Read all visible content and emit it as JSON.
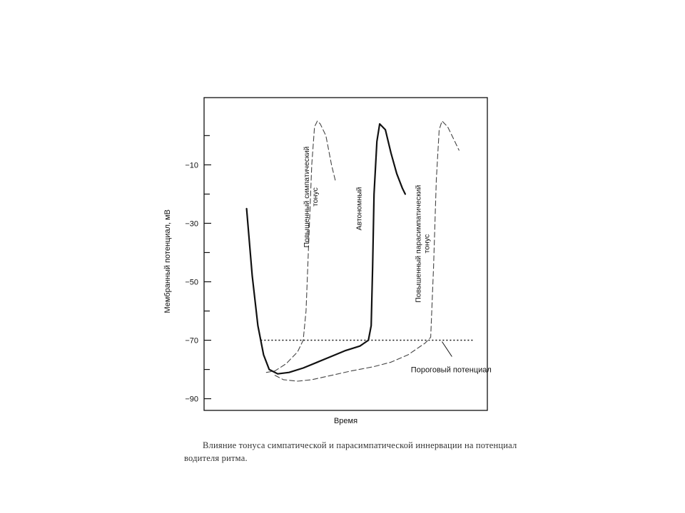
{
  "chart_data": {
    "type": "line",
    "title": "",
    "xlabel": "Время",
    "ylabel": "Мембранный потенциал, мВ",
    "ylim": [
      -94,
      13
    ],
    "yticks": [
      -10,
      -30,
      -50,
      -70,
      -90
    ],
    "ytick_labels": [
      "−10",
      "−30",
      "−50",
      "−70",
      "−90"
    ],
    "x_range": [
      0,
      100
    ],
    "grid": false,
    "threshold": {
      "y": -70,
      "label": "Пороговый потенциал",
      "style": "dotted"
    },
    "series": [
      {
        "name": "Автономный",
        "style": "solid-bold",
        "color": "#111111",
        "x": [
          15,
          17,
          19,
          21,
          23,
          26,
          30,
          35,
          40,
          45,
          50,
          55,
          58,
          59,
          59.5,
          60,
          61,
          62,
          64,
          66,
          68,
          70,
          71
        ],
        "y": [
          -25,
          -48,
          -65,
          -75,
          -80,
          -81.5,
          -81,
          -79.5,
          -77.5,
          -75.5,
          -73.5,
          -72,
          -70,
          -65,
          -45,
          -20,
          -2,
          4,
          2,
          -6,
          -13,
          -18,
          -20
        ]
      },
      {
        "name": "Повышенный симпатический тонус",
        "style": "dashed",
        "color": "#444444",
        "x": [
          22,
          25,
          29,
          33,
          35,
          36,
          37,
          38,
          39,
          40,
          41,
          43,
          45,
          46.5
        ],
        "y": [
          -81,
          -80.5,
          -78,
          -74,
          -70,
          -60,
          -35,
          -10,
          3,
          5,
          4,
          0,
          -10,
          -16
        ]
      },
      {
        "name": "Повышенный парасимпатический тонус",
        "style": "dashed",
        "color": "#444444",
        "x": [
          25,
          28,
          33,
          38,
          45,
          52,
          60,
          66,
          72,
          78,
          80,
          81,
          82,
          83,
          84,
          86,
          88,
          90
        ],
        "y": [
          -82,
          -83.5,
          -84,
          -83.5,
          -82,
          -80.5,
          -79,
          -77.5,
          -75,
          -71,
          -69,
          -45,
          -15,
          2,
          5,
          3,
          -1,
          -5
        ]
      }
    ]
  },
  "caption": "Влияние тонуса симпатической и парасимпатической иннервации на потенциал водителя ритма."
}
